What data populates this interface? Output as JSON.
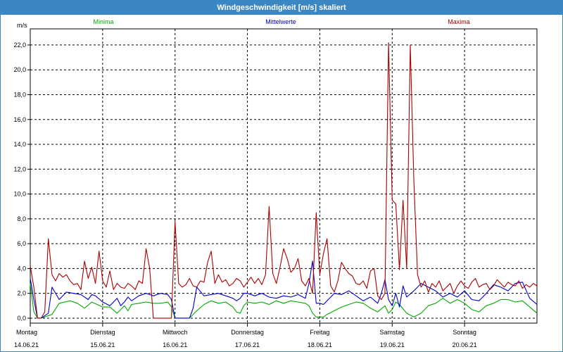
{
  "window": {
    "title": "Windgeschwindigkeit [m/s] skaliert"
  },
  "chart_data": {
    "type": "line",
    "title": "Windgeschwindigkeit [m/s] skaliert",
    "ylabel": "m/s",
    "ylim": [
      -0.4,
      23.3
    ],
    "y_ticks": [
      "0,0",
      "2,0",
      "4,0",
      "6,0",
      "8,0",
      "10,0",
      "12,0",
      "14,0",
      "16,0",
      "18,0",
      "20,0",
      "22,0"
    ],
    "x_day_labels": [
      {
        "day": "Montag",
        "date": "14.06.21"
      },
      {
        "day": "Dienstag",
        "date": "15.06.21"
      },
      {
        "day": "Mittwoch",
        "date": "16.06.21"
      },
      {
        "day": "Donnerstag",
        "date": "17.06.21"
      },
      {
        "day": "Freitag",
        "date": "18.06.21"
      },
      {
        "day": "Samstag",
        "date": "19.06.21"
      },
      {
        "day": "Sonntag",
        "date": "20.06.21"
      }
    ],
    "xlim": [
      0,
      7
    ],
    "grid": true,
    "legend_position": "top",
    "series": [
      {
        "name": "Minima",
        "color": "#00aa00",
        "x": [
          0,
          0.05,
          0.1,
          0.15,
          0.3,
          0.4,
          0.55,
          0.65,
          0.75,
          0.85,
          1.0,
          1.1,
          1.2,
          1.25,
          1.3,
          1.35,
          1.4,
          1.5,
          1.6,
          1.7,
          1.8,
          1.9,
          1.95,
          2.0,
          2.05,
          2.1,
          2.2,
          2.3,
          2.4,
          2.5,
          2.6,
          2.7,
          2.8,
          2.85,
          2.9,
          2.95,
          3.0,
          3.1,
          3.2,
          3.3,
          3.4,
          3.5,
          3.6,
          3.7,
          3.8,
          3.85,
          3.9,
          3.95,
          4.0,
          4.05,
          4.1,
          4.2,
          4.3,
          4.4,
          4.5,
          4.6,
          4.7,
          4.8,
          4.9,
          4.95,
          5.0,
          5.05,
          5.1,
          5.2,
          5.3,
          5.4,
          5.5,
          5.6,
          5.7,
          5.8,
          5.9,
          6.0,
          6.1,
          6.2,
          6.3,
          6.4,
          6.5,
          6.6,
          6.7,
          6.8,
          6.9,
          7.0
        ],
        "values": [
          2.8,
          0.5,
          0,
          0,
          0.3,
          1.2,
          1.4,
          1.2,
          0.8,
          1.3,
          0.9,
          0.9,
          0.4,
          0.7,
          1.0,
          0.6,
          1.1,
          1.2,
          1.3,
          1.2,
          1.2,
          1.3,
          0.9,
          0,
          0,
          0,
          0,
          0.6,
          1.1,
          1.4,
          1.2,
          1.3,
          0.9,
          0.5,
          0.4,
          1.0,
          1.3,
          1.2,
          1.3,
          1.1,
          1.4,
          1.2,
          1.4,
          1.3,
          1.2,
          1.0,
          0.4,
          0.1,
          0.1,
          0.1,
          0.3,
          0.6,
          0.9,
          1.1,
          1.3,
          1.2,
          0.8,
          0.5,
          1.0,
          0.4,
          0.7,
          1.3,
          1.1,
          0.4,
          0.1,
          0.4,
          1.0,
          1.2,
          1.6,
          1.2,
          1.5,
          1.2,
          0.7,
          0.5,
          1.0,
          1.2,
          1.5,
          1.5,
          1.3,
          1.4,
          0.9,
          0.4
        ]
      },
      {
        "name": "Mittelwerte",
        "color": "#0000cc",
        "x": [
          0,
          0.05,
          0.1,
          0.15,
          0.25,
          0.3,
          0.4,
          0.5,
          0.6,
          0.7,
          0.8,
          0.85,
          0.9,
          1.0,
          1.1,
          1.2,
          1.25,
          1.3,
          1.35,
          1.4,
          1.5,
          1.6,
          1.7,
          1.8,
          1.9,
          1.95,
          2.0,
          2.05,
          2.1,
          2.2,
          2.25,
          2.3,
          2.4,
          2.5,
          2.6,
          2.7,
          2.8,
          2.85,
          2.9,
          2.95,
          3.0,
          3.1,
          3.2,
          3.3,
          3.4,
          3.5,
          3.6,
          3.7,
          3.8,
          3.85,
          3.9,
          3.95,
          4.0,
          4.05,
          4.1,
          4.2,
          4.3,
          4.4,
          4.5,
          4.6,
          4.7,
          4.8,
          4.85,
          4.9,
          4.95,
          5.0,
          5.05,
          5.1,
          5.15,
          5.2,
          5.3,
          5.4,
          5.5,
          5.6,
          5.7,
          5.8,
          5.9,
          6.0,
          6.1,
          6.2,
          6.3,
          6.4,
          6.5,
          6.6,
          6.7,
          6.8,
          6.9,
          7.0
        ],
        "values": [
          3.2,
          1.5,
          0,
          0,
          0.4,
          2.5,
          1.5,
          2.1,
          2.0,
          1.9,
          1.5,
          1.9,
          1.8,
          1.3,
          1.0,
          1.6,
          1.0,
          1.3,
          1.7,
          1.4,
          1.8,
          2.0,
          1.8,
          2.0,
          1.9,
          1.5,
          0,
          0,
          0,
          0,
          0.8,
          2.5,
          1.8,
          1.9,
          2.0,
          1.8,
          1.6,
          1.4,
          1.6,
          2.0,
          2.0,
          1.8,
          2.0,
          1.7,
          1.6,
          1.8,
          1.7,
          1.9,
          1.6,
          2.8,
          4.6,
          1.2,
          1.2,
          1.1,
          1.4,
          2.0,
          1.9,
          2.2,
          1.8,
          1.4,
          1.7,
          1.2,
          2.0,
          3.1,
          1.5,
          1.0,
          2.0,
          0.9,
          2.6,
          1.7,
          2.2,
          2.8,
          2.5,
          2.2,
          1.7,
          2.0,
          1.7,
          2.2,
          1.5,
          1.4,
          2.0,
          2.7,
          2.5,
          2.2,
          2.8,
          2.9,
          1.6,
          1.1
        ]
      },
      {
        "name": "Maxima",
        "color": "#aa0000",
        "x": [
          0,
          0.05,
          0.1,
          0.15,
          0.2,
          0.25,
          0.3,
          0.35,
          0.4,
          0.45,
          0.5,
          0.55,
          0.6,
          0.65,
          0.7,
          0.75,
          0.8,
          0.85,
          0.9,
          0.95,
          1.0,
          1.05,
          1.1,
          1.15,
          1.2,
          1.25,
          1.3,
          1.35,
          1.4,
          1.45,
          1.5,
          1.55,
          1.6,
          1.65,
          1.7,
          1.75,
          1.8,
          1.85,
          1.9,
          1.95,
          2.0,
          2.05,
          2.1,
          2.15,
          2.2,
          2.25,
          2.3,
          2.35,
          2.4,
          2.45,
          2.5,
          2.55,
          2.6,
          2.65,
          2.7,
          2.75,
          2.8,
          2.85,
          2.9,
          2.95,
          3.0,
          3.05,
          3.1,
          3.15,
          3.2,
          3.25,
          3.3,
          3.35,
          3.4,
          3.45,
          3.5,
          3.55,
          3.6,
          3.65,
          3.7,
          3.75,
          3.8,
          3.85,
          3.9,
          3.95,
          4.0,
          4.05,
          4.1,
          4.15,
          4.2,
          4.25,
          4.3,
          4.35,
          4.4,
          4.45,
          4.5,
          4.55,
          4.6,
          4.65,
          4.7,
          4.75,
          4.8,
          4.85,
          4.9,
          4.95,
          5.0,
          5.05,
          5.1,
          5.15,
          5.2,
          5.25,
          5.3,
          5.35,
          5.4,
          5.45,
          5.5,
          5.55,
          5.6,
          5.65,
          5.7,
          5.75,
          5.8,
          5.85,
          5.9,
          5.95,
          6.0,
          6.05,
          6.1,
          6.15,
          6.2,
          6.25,
          6.3,
          6.35,
          6.4,
          6.45,
          6.5,
          6.55,
          6.6,
          6.65,
          6.7,
          6.75,
          6.8,
          6.85,
          6.9,
          6.95,
          7.0
        ],
        "values": [
          4.2,
          2.5,
          0,
          0,
          0.5,
          6.4,
          3.5,
          3.0,
          3.6,
          3.3,
          3.5,
          3.0,
          2.7,
          2.8,
          2.3,
          4.6,
          3.2,
          4.1,
          2.8,
          5.4,
          3.0,
          2.5,
          3.8,
          2.3,
          2.8,
          2.5,
          2.4,
          2.8,
          2.6,
          2.3,
          3.0,
          2.8,
          5.6,
          4.0,
          0,
          0,
          0,
          0,
          0,
          0,
          7.8,
          2.8,
          2.5,
          2.7,
          3.2,
          2.6,
          2.5,
          3.0,
          2.9,
          4.5,
          5.4,
          2.8,
          3.5,
          2.9,
          3.1,
          2.6,
          2.8,
          3.2,
          3.0,
          2.5,
          2.9,
          3.3,
          2.8,
          3.2,
          2.7,
          3.5,
          9.0,
          3.6,
          2.8,
          4.1,
          5.6,
          4.8,
          3.7,
          4.0,
          4.8,
          3.0,
          2.6,
          3.2,
          2.0,
          8.5,
          3.5,
          5.2,
          6.4,
          2.6,
          2.1,
          3.0,
          4.5,
          4.0,
          3.6,
          3.4,
          2.8,
          2.7,
          3.0,
          2.4,
          3.8,
          4.0,
          1.8,
          1.5,
          2.0,
          22.2,
          9.5,
          9.2,
          3.9,
          9.5,
          4.0,
          22.0,
          11.0,
          3.5,
          2.5,
          3.0,
          2.1,
          2.8,
          2.5,
          3.0,
          2.2,
          2.5,
          2.8,
          2.0,
          2.6,
          3.0,
          2.6,
          2.4,
          2.9,
          3.2,
          2.5,
          2.7,
          2.8,
          2.3,
          2.6,
          3.1,
          2.8,
          2.5,
          2.9,
          2.7,
          2.6,
          3.0,
          2.4,
          2.7,
          2.5,
          2.8,
          2.6
        ]
      }
    ]
  }
}
